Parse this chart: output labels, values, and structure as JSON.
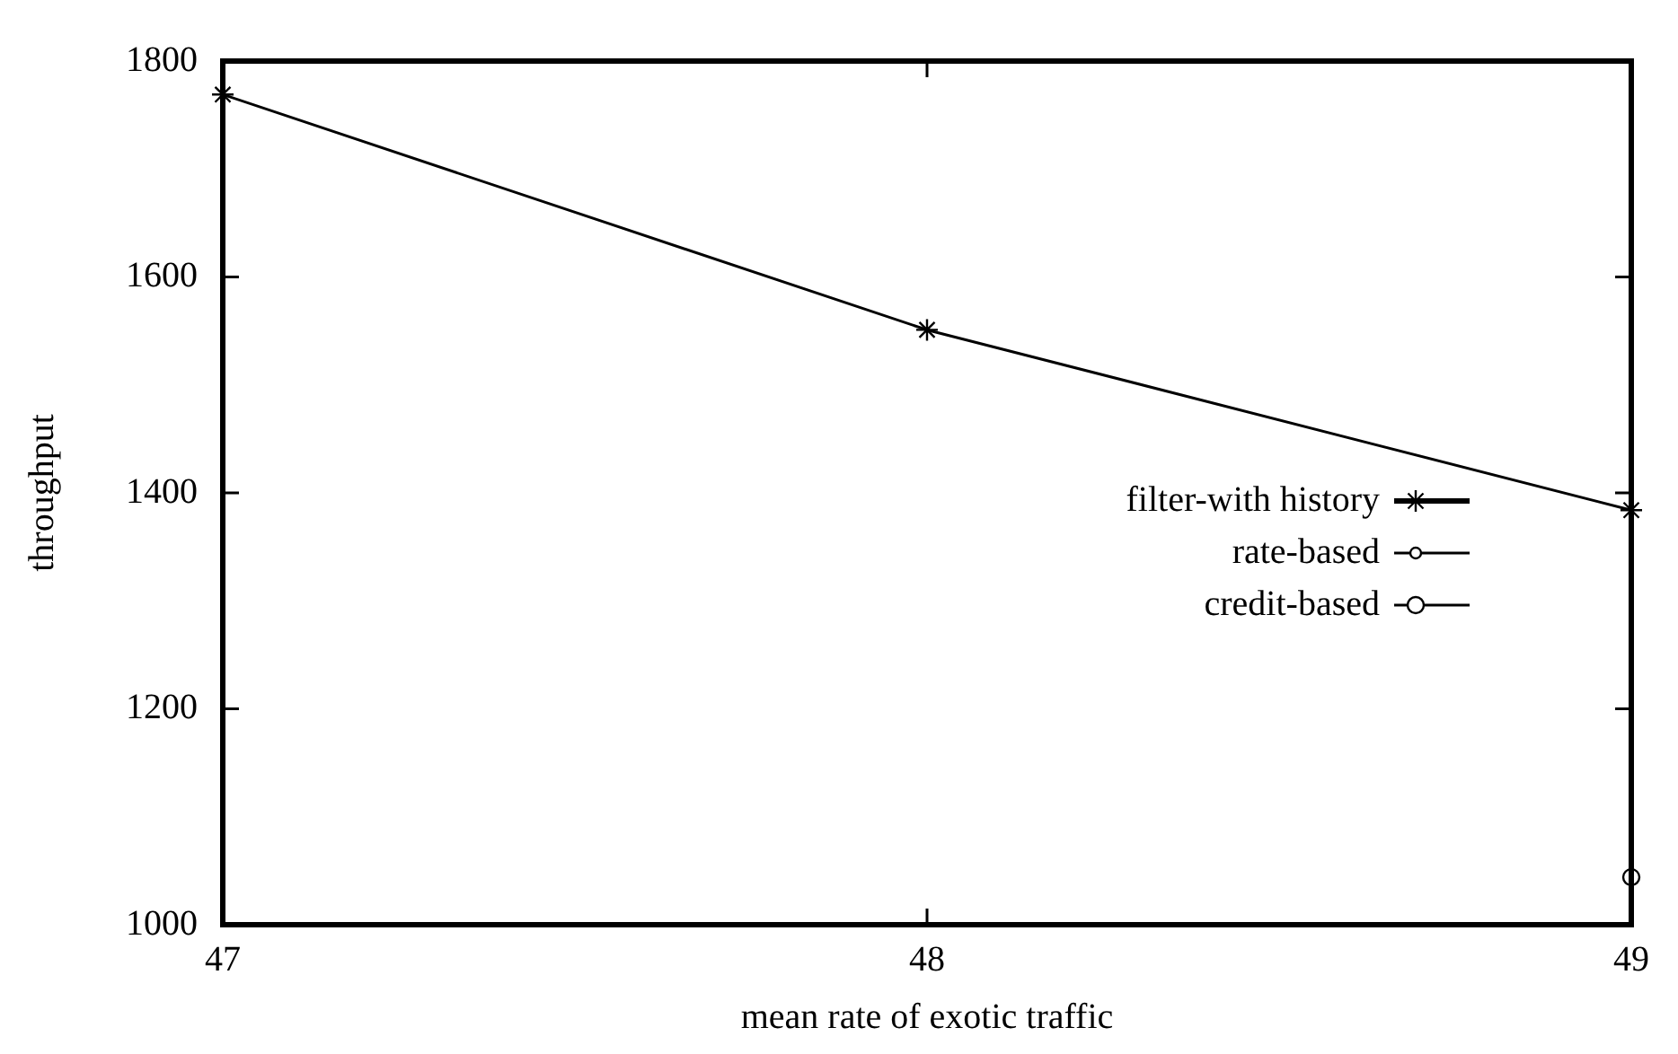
{
  "chart_data": {
    "type": "line",
    "xlabel": "mean rate of exotic traffic",
    "ylabel": "throughput",
    "x": [
      47,
      48,
      49
    ],
    "xlim": [
      47,
      49
    ],
    "xticks": [
      47,
      48,
      49
    ],
    "ylim": [
      1000,
      1800
    ],
    "yticks": [
      1000,
      1200,
      1400,
      1600,
      1800
    ],
    "legend": "right",
    "series": [
      {
        "name": "filter-with history",
        "color": "#000000",
        "marker": "cross",
        "values": [
          1769,
          1551,
          1384
        ]
      },
      {
        "name": "rate-based",
        "color": "#000000",
        "marker": "circle",
        "values": [
          null,
          null,
          null
        ]
      },
      {
        "name": "credit-based",
        "color": "#000000",
        "marker": "circle",
        "values": [
          null,
          null,
          1044
        ]
      }
    ]
  }
}
